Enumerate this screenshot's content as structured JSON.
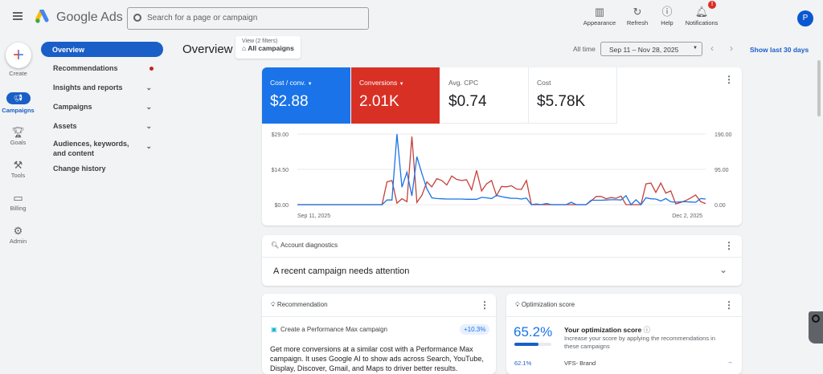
{
  "header": {
    "brand": "Google Ads",
    "search_placeholder": "Search for a page or campaign",
    "actions": [
      {
        "label": "Appearance",
        "icon": "appearance-icon"
      },
      {
        "label": "Refresh",
        "icon": "refresh-icon"
      },
      {
        "label": "Help",
        "icon": "help-icon"
      },
      {
        "label": "Notifications",
        "icon": "bell-icon"
      }
    ],
    "notification_badge": "!",
    "avatar_letter": "P"
  },
  "rail": [
    {
      "label": "Create"
    },
    {
      "label": "Campaigns"
    },
    {
      "label": "Goals"
    },
    {
      "label": "Tools"
    },
    {
      "label": "Billing"
    },
    {
      "label": "Admin"
    }
  ],
  "nav": [
    {
      "label": "Overview"
    },
    {
      "label": "Recommendations"
    },
    {
      "label": "Insights and reports"
    },
    {
      "label": "Campaigns"
    },
    {
      "label": "Assets"
    },
    {
      "label": "Audiences, keywords, and content"
    },
    {
      "label": "Change history"
    }
  ],
  "page": {
    "title": "Overview",
    "view_label": "View (2 filters)",
    "view_value": "All campaigns",
    "all_time": "All time",
    "date_range": "Sep 11 – Nov 28, 2025",
    "show_last": "Show last 30 days"
  },
  "metrics": [
    {
      "label": "Cost / conv.",
      "value": "$2.88"
    },
    {
      "label": "Conversions",
      "value": "2.01K"
    },
    {
      "label": "Avg. CPC",
      "value": "$0.74"
    },
    {
      "label": "Cost",
      "value": "$5.78K"
    }
  ],
  "colors": {
    "blue": "#1a73e8",
    "red": "#d93025"
  },
  "chart_data": {
    "type": "line",
    "x_start": "Sep 11, 2025",
    "x_end": "Dec 2, 2025",
    "left_ticks": [
      "$0.00",
      "$14.50",
      "$29.00"
    ],
    "right_ticks": [
      "0.00",
      "95.00",
      "190.00"
    ],
    "left_ylim": [
      0,
      29
    ],
    "right_ylim": [
      0,
      190
    ],
    "series": [
      {
        "name": "Cost / conv.",
        "axis": "left",
        "values": [
          0,
          0,
          0,
          0,
          0,
          0,
          0,
          0,
          0,
          0,
          0,
          0,
          0,
          0,
          0,
          0,
          0,
          0,
          1.9,
          1.9,
          29,
          7.2,
          13.3,
          3.6,
          19.7,
          12.8,
          6.5,
          2.8,
          2.5,
          2.4,
          2.3,
          2.3,
          2.3,
          2.3,
          2.2,
          2.2,
          2.2,
          3.0,
          2.8,
          2.5,
          3.8,
          3.3,
          2.9,
          2.6,
          2.6,
          2.3,
          2.7,
          0,
          0.3,
          0,
          0.5,
          0,
          0,
          0,
          0,
          1.0,
          0,
          0,
          0,
          1.8,
          1.8,
          1.8,
          1.9,
          2.0,
          2.0,
          1.9,
          3.7,
          0,
          2.0,
          0,
          2.8,
          2.4,
          2.3,
          1.5,
          2.5,
          1.2,
          1.0,
          1.2,
          1.2,
          1.1,
          1.0,
          2.5,
          2.3
        ]
      },
      {
        "name": "Conversions",
        "axis": "right",
        "values": [
          0,
          0,
          0,
          0,
          0,
          0,
          0,
          0,
          0,
          0,
          0,
          0,
          0,
          0,
          0,
          0,
          0,
          0,
          61,
          65,
          4,
          16,
          8,
          183,
          6,
          25,
          61,
          48,
          70,
          65,
          53,
          77,
          68,
          65,
          67,
          40,
          92,
          37,
          56,
          65,
          24,
          49,
          48,
          51,
          42,
          41,
          65,
          0,
          0,
          0,
          0,
          0,
          0,
          0,
          0,
          0,
          0,
          0,
          0,
          10,
          22,
          22,
          16,
          19,
          17,
          23,
          0,
          0,
          0,
          0,
          56,
          58,
          33,
          58,
          31,
          37,
          2,
          6,
          11,
          18,
          26,
          8,
          3
        ]
      }
    ]
  },
  "diagnostics": {
    "title": "Account diagnostics",
    "message": "A recent campaign needs attention"
  },
  "recommendation": {
    "title": "Recommendation",
    "item": "Create a Performance Max campaign",
    "uplift": "+10.3%",
    "body": "Get more conversions at a similar cost with a Performance Max campaign. It uses Google AI to show ads across Search, YouTube, Display, Discover, Gmail, and Maps to driver better results."
  },
  "optimization": {
    "title": "Optimization score",
    "score": "65.2%",
    "score_fraction": 0.652,
    "heading": "Your optimization score",
    "desc": "Increase your score by applying the recommendations in these campaigns",
    "rows": [
      {
        "score": "62.1%",
        "name": "VFS- Brand"
      }
    ]
  }
}
